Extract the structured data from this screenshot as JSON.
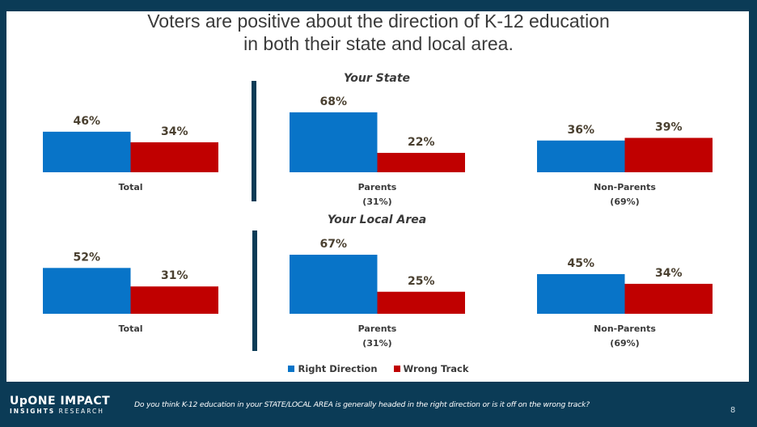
{
  "title": {
    "line1": "Voters are positive about the direction of K-12 education",
    "line2": "in both their state and local area."
  },
  "colors": {
    "right_direction": "#0874c8",
    "wrong_track": "#c00000",
    "frame": "#0b3b56"
  },
  "legend": {
    "items": [
      {
        "label": "Right Direction",
        "color": "#0874c8"
      },
      {
        "label": "Wrong Track",
        "color": "#c00000"
      }
    ]
  },
  "footer": {
    "logo_line1": "UpONE IMPACT",
    "logo_line2a": "INSIGHTS",
    "logo_line2b": "RESEARCH",
    "question": "Do you think K-12 education in your STATE/LOCAL AREA is generally headed in the right direction or is it off on the wrong track?",
    "page_number": "8"
  },
  "chart_data": [
    {
      "type": "bar",
      "title": "Your State",
      "series_names": [
        "Right Direction",
        "Wrong Track"
      ],
      "groups": [
        {
          "category": "Total",
          "subtitle": "",
          "values": [
            46,
            34
          ],
          "labels": [
            "46%",
            "34%"
          ]
        },
        {
          "category": "Parents",
          "subtitle": "(31%)",
          "values": [
            68,
            22
          ],
          "labels": [
            "68%",
            "22%"
          ]
        },
        {
          "category": "Non-Parents",
          "subtitle": "(69%)",
          "values": [
            36,
            39
          ],
          "labels": [
            "36%",
            "39%"
          ]
        }
      ],
      "ylim": [
        0,
        100
      ],
      "grid": false,
      "legend": "bottom-center"
    },
    {
      "type": "bar",
      "title": "Your Local Area",
      "series_names": [
        "Right Direction",
        "Wrong Track"
      ],
      "groups": [
        {
          "category": "Total",
          "subtitle": "",
          "values": [
            52,
            31
          ],
          "labels": [
            "52%",
            "31%"
          ]
        },
        {
          "category": "Parents",
          "subtitle": "(31%)",
          "values": [
            67,
            25
          ],
          "labels": [
            "67%",
            "25%"
          ]
        },
        {
          "category": "Non-Parents",
          "subtitle": "(69%)",
          "values": [
            45,
            34
          ],
          "labels": [
            "45%",
            "34%"
          ]
        }
      ],
      "ylim": [
        0,
        100
      ],
      "grid": false,
      "legend": "bottom-center"
    }
  ]
}
